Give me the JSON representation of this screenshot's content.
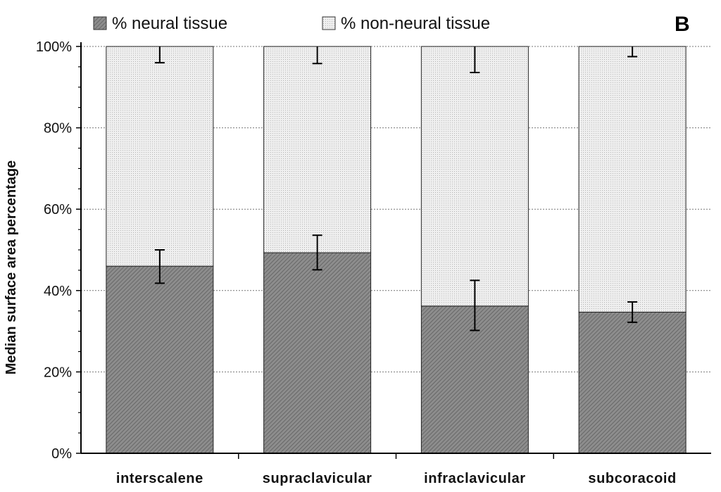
{
  "chart_data": {
    "type": "bar",
    "stacked": true,
    "panel_label": "B",
    "title": "",
    "xlabel": "",
    "ylabel": "Median surface area percentage",
    "ylim": [
      0,
      100
    ],
    "y_ticks": [
      "0%",
      "20%",
      "40%",
      "60%",
      "80%",
      "100%"
    ],
    "grid": "horizontal dotted",
    "legend_position": "top",
    "categories": [
      "interscalene",
      "supraclavicular",
      "infraclavicular",
      "subcoracoid"
    ],
    "series": [
      {
        "name": "% neural tissue",
        "values": [
          46,
          49.3,
          36.2,
          34.7
        ],
        "error_low": [
          41.8,
          45.1,
          30.2,
          32.2
        ],
        "error_high": [
          50,
          53.6,
          42.5,
          37.2
        ],
        "fill": "#8a8a8a",
        "pattern": "dense diagonal hatch"
      },
      {
        "name": "% non-neural tissue",
        "values": [
          54,
          50.7,
          63.8,
          65.3
        ],
        "error_low": [
          96,
          95.8,
          93.6,
          97.5
        ],
        "error_high": [
          100,
          100,
          100,
          100
        ],
        "fill": "#ebebeb",
        "pattern": "light stipple"
      }
    ]
  }
}
